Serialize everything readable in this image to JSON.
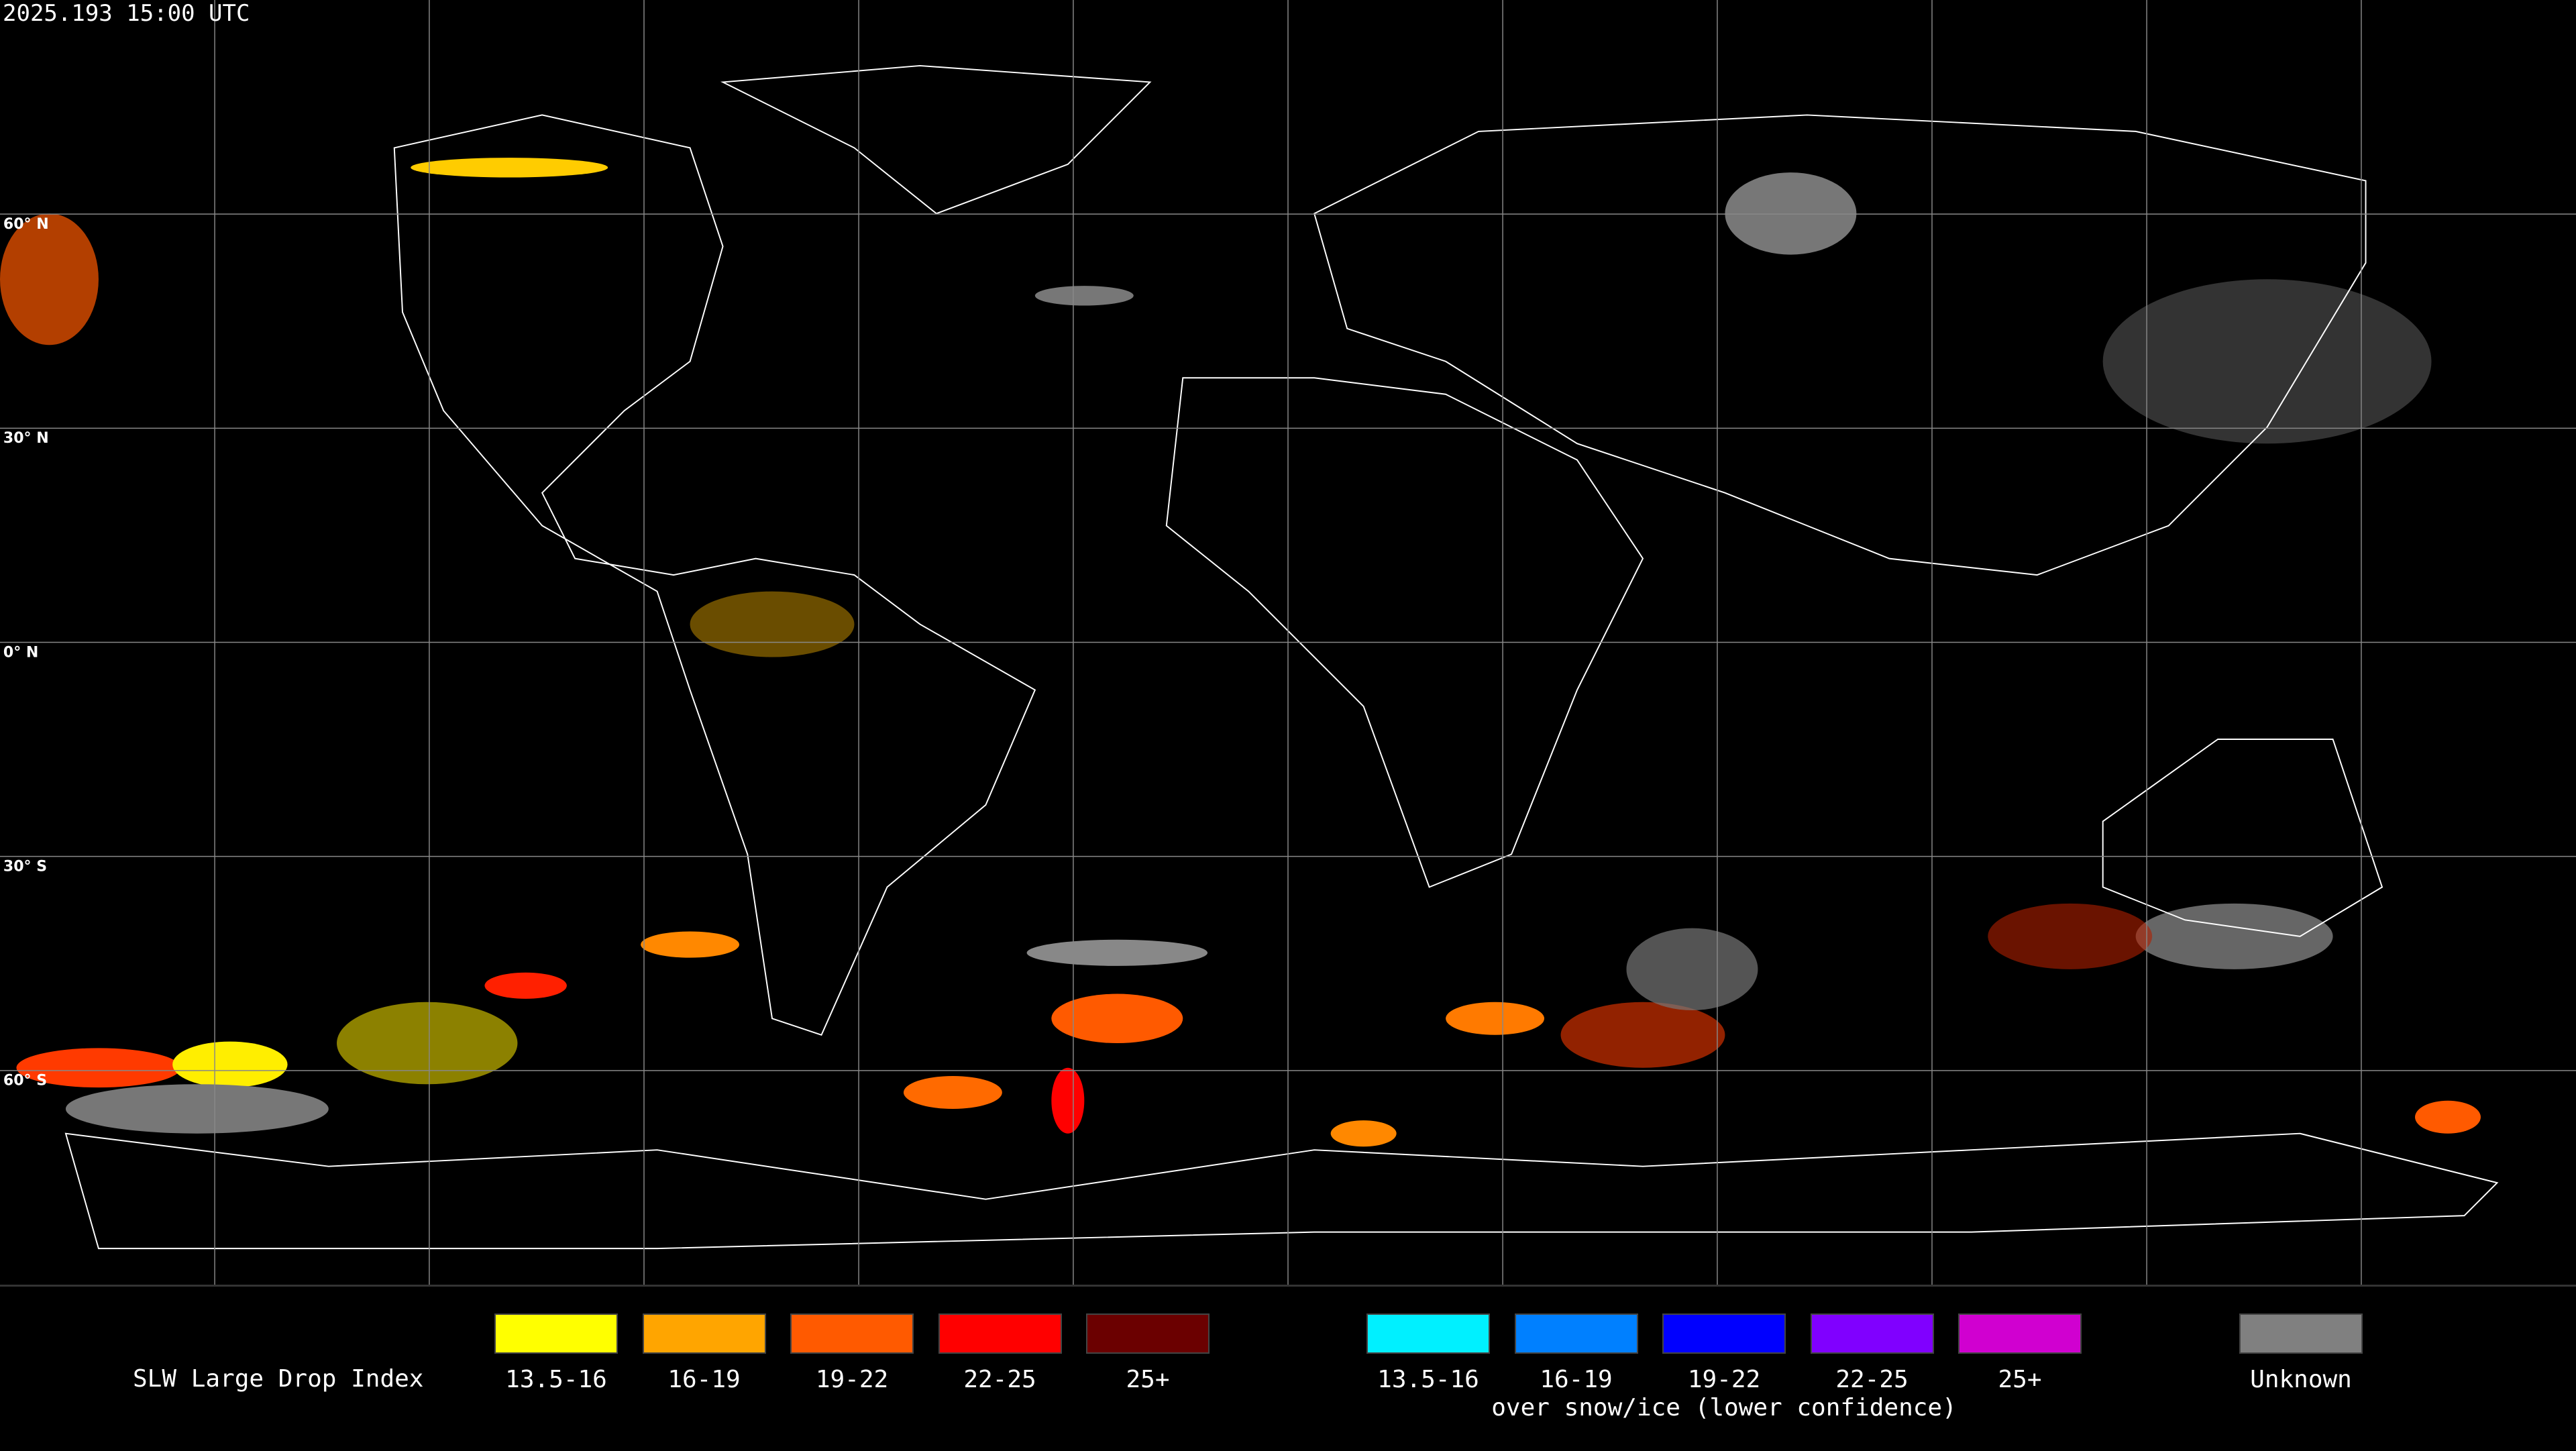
{
  "header": {
    "timestamp": "2025.193 15:00 UTC"
  },
  "map": {
    "latitude_labels": [
      "60° N",
      "30° N",
      "0° N",
      "30° S",
      "60° S"
    ]
  },
  "legend": {
    "title": "SLW Large Drop Index",
    "groups": [
      {
        "items": [
          {
            "label": "13.5-16",
            "color": "#ffff00"
          },
          {
            "label": "16-19",
            "color": "#ffa500"
          },
          {
            "label": "19-22",
            "color": "#ff5a00"
          },
          {
            "label": "22-25",
            "color": "#ff0000"
          },
          {
            "label": "25+",
            "color": "#6b0000"
          }
        ]
      },
      {
        "caption": "over snow/ice (lower confidence)",
        "items": [
          {
            "label": "13.5-16",
            "color": "#00f0ff"
          },
          {
            "label": "16-19",
            "color": "#0080ff"
          },
          {
            "label": "19-22",
            "color": "#0000ff"
          },
          {
            "label": "22-25",
            "color": "#8000ff"
          },
          {
            "label": "25+",
            "color": "#d000d0"
          }
        ]
      },
      {
        "items": [
          {
            "label": "Unknown",
            "color": "#808080"
          }
        ]
      }
    ]
  }
}
